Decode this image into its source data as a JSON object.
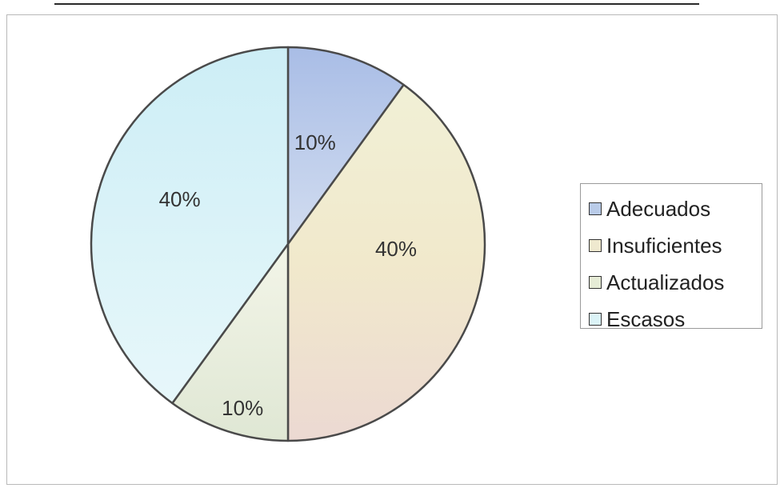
{
  "chart_data": {
    "type": "pie",
    "title": "",
    "categories": [
      "Adecuados",
      "Insuficientes",
      "Actualizados",
      "Escasos"
    ],
    "values": [
      10,
      40,
      10,
      40
    ],
    "data_labels": [
      "10%",
      "40%",
      "10%",
      "40%"
    ],
    "colors": [
      "#b9cbe8",
      "#efe9cf",
      "#e6ecd6",
      "#dbf3f7"
    ],
    "legend": {
      "placement": "right",
      "labels": [
        "Adecuados",
        "Insuficientes",
        "Actualizados",
        "Escasos"
      ]
    }
  }
}
